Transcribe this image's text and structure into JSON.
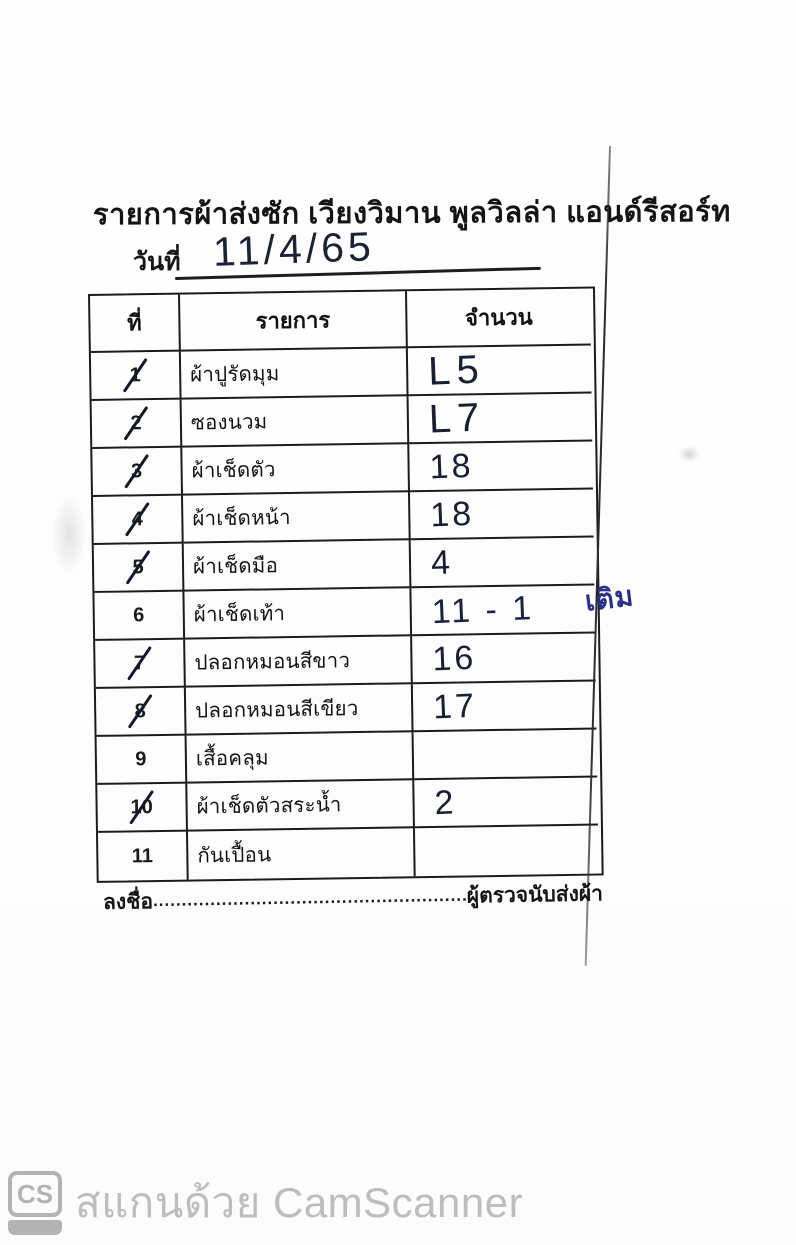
{
  "document": {
    "title": "รายการผ้าส่งซัก  เวียงวิมาน พูลวิลล่า แอนด์รีสอร์ท",
    "date_label": "วันที่",
    "date_value": "11/4/65",
    "side_note": "เติม",
    "signature_prefix": "ลงชื่อ",
    "signature_dots": "...............................................................",
    "signature_suffix": "ผู้ตรวจนับส่งผ้า"
  },
  "table": {
    "headers": {
      "no": "ที่",
      "item": "รายการ",
      "qty": "จำนวน"
    },
    "rows": [
      {
        "no": "1",
        "item": "ผ้าปูรัดมุม",
        "qty": "L5",
        "checked": true
      },
      {
        "no": "2",
        "item": "ซองนวม",
        "qty": "L7",
        "checked": true
      },
      {
        "no": "3",
        "item": "ผ้าเช็ดตัว",
        "qty": "18",
        "checked": true
      },
      {
        "no": "4",
        "item": "ผ้าเช็ดหน้า",
        "qty": "18",
        "checked": true
      },
      {
        "no": "5",
        "item": "ผ้าเช็ดมือ",
        "qty": "4",
        "checked": true
      },
      {
        "no": "6",
        "item": "ผ้าเช็ดเท้า",
        "qty": "11 - 1",
        "checked": false
      },
      {
        "no": "7",
        "item": "ปลอกหมอนสีขาว",
        "qty": "16",
        "checked": true
      },
      {
        "no": "8",
        "item": "ปลอกหมอนสีเขียว",
        "qty": "17",
        "checked": true
      },
      {
        "no": "9",
        "item": "เสื้อคลุม",
        "qty": "",
        "checked": false
      },
      {
        "no": "10",
        "item": "ผ้าเช็ดตัวสระน้ำ",
        "qty": "2",
        "checked": true
      },
      {
        "no": "11",
        "item": "กันเปื้อน",
        "qty": "",
        "checked": false
      }
    ]
  },
  "footer": {
    "logo_text": "CS",
    "watermark": "สแกนด้วย CamScanner"
  },
  "colors": {
    "ink": "#1a1a1a",
    "handwriting_ink": "#191e30",
    "blue_note_ink": "#2b3186",
    "watermark_gray": "#bdbdbd"
  }
}
